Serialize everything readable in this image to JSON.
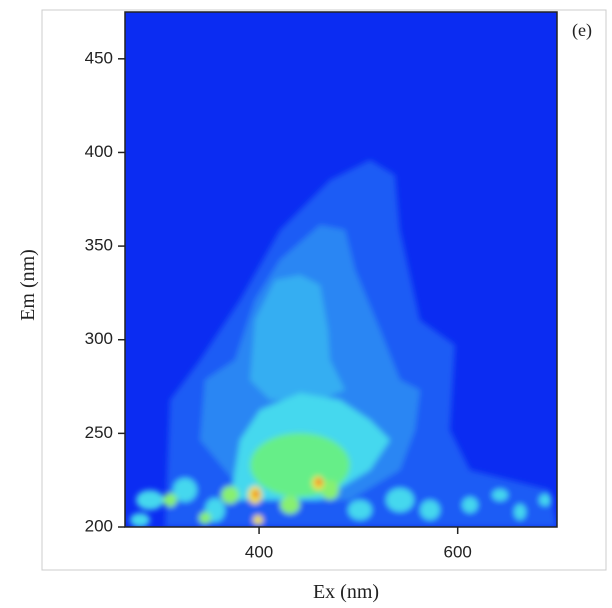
{
  "chart_data": {
    "type": "contour",
    "annotation": "(e)",
    "x_label": "Ex (nm)",
    "y_label": "Em (nm)",
    "xlim": [
      265,
      700
    ],
    "ylim": [
      200,
      475
    ],
    "xticks": [
      400,
      600
    ],
    "yticks": [
      200,
      250,
      300,
      350,
      400,
      450
    ]
  }
}
